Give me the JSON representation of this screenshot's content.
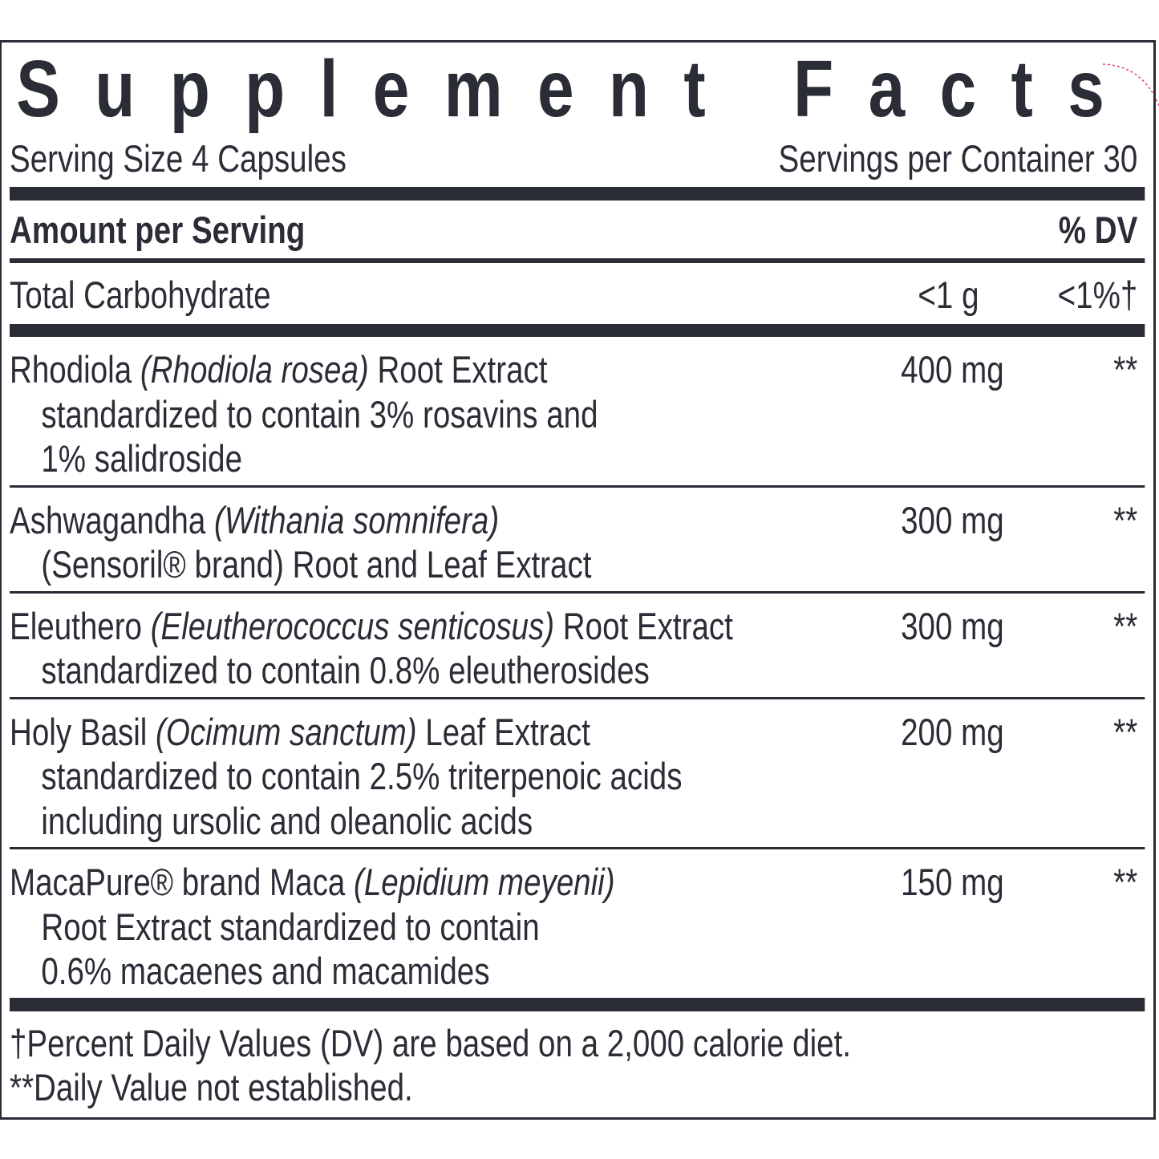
{
  "title": "Supplement Facts",
  "serving_size": "Serving Size 4 Capsules",
  "servings_per_container": "Servings per Container 30",
  "header": {
    "amount": "Amount per Serving",
    "dv": "% DV"
  },
  "total_row": {
    "name": "Total Carbohydrate",
    "amount": "<1 g",
    "dv": "<1%†"
  },
  "ingredients": [
    {
      "first_line": [
        {
          "text": "Rhodiola"
        },
        {
          "text": "(Rhodiola rosea)",
          "italic": true
        },
        {
          "text": "Root Extract"
        }
      ],
      "detail": [
        "standardized to contain 3% rosavins and",
        "1% salidroside"
      ],
      "amount": "400 mg",
      "dv": "**"
    },
    {
      "first_line": [
        {
          "text": "Ashwagandha"
        },
        {
          "text": "(Withania somnifera)",
          "italic": true
        }
      ],
      "detail": [
        "(Sensoril® brand) Root and Leaf Extract"
      ],
      "amount": "300 mg",
      "dv": "**"
    },
    {
      "first_line": [
        {
          "text": "Eleuthero"
        },
        {
          "text": "(Eleutherococcus senticosus)",
          "italic": true
        },
        {
          "text": "Root Extract"
        }
      ],
      "detail": [
        "standardized to contain 0.8% eleutherosides"
      ],
      "amount": "300 mg",
      "dv": "**"
    },
    {
      "first_line": [
        {
          "text": "Holy Basil"
        },
        {
          "text": "(Ocimum sanctum)",
          "italic": true
        },
        {
          "text": "Leaf Extract"
        }
      ],
      "detail": [
        "standardized to contain 2.5% triterpenoic acids",
        "including ursolic and oleanolic acids"
      ],
      "amount": "200 mg",
      "dv": "**"
    },
    {
      "first_line": [
        {
          "text": "MacaPure® brand Maca"
        },
        {
          "text": "(Lepidium meyenii)",
          "italic": true
        }
      ],
      "detail": [
        "Root Extract standardized to contain",
        "0.6% macaenes and macamides"
      ],
      "amount": "150 mg",
      "dv": "**"
    }
  ],
  "footnotes": [
    "†Percent Daily Values (DV) are based on a 2,000 calorie diet.",
    "**Daily Value not established."
  ]
}
